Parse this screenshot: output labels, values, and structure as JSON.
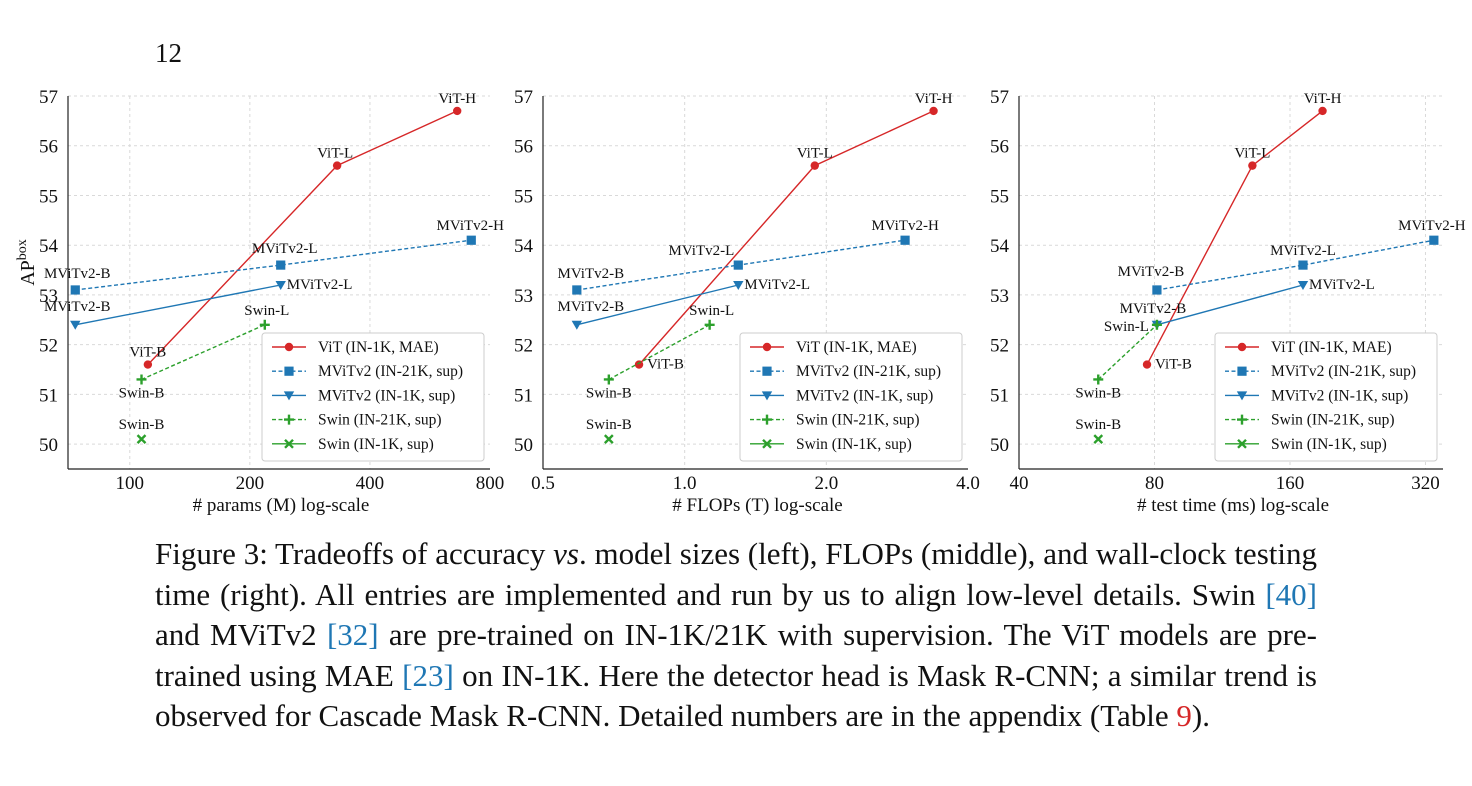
{
  "page": {
    "number": "12"
  },
  "figure": {
    "caption": {
      "label": "Figure 3:",
      "text_1": " Tradeoffs of accuracy ",
      "vs": "vs",
      "text_2": ". model sizes (left), FLOPs (middle), and wall-clock testing time (right). All entries are implemented and run by us to align low-level details. Swin ",
      "ref_swin": "[40]",
      "text_3": " and MViTv2 ",
      "ref_mvit": "[32]",
      "text_4": " are pre-trained on IN-1K/21K with supervision. The ViT models are pre-trained using MAE ",
      "ref_mae": "[23]",
      "text_5": " on IN-1K. Here the detector head is Mask R-CNN; a similar trend is observed for Cascade Mask R-CNN. Detailed numbers are in the appendix (Table ",
      "ref_table": "9",
      "text_6": ")."
    }
  },
  "chart_data": [
    {
      "type": "line",
      "xlabel": "# params (M) log-scale",
      "ylabel": "AP",
      "ylabel_sup": "box",
      "xscale": "log",
      "xlim": [
        70,
        800
      ],
      "xticks": [
        100,
        200,
        400,
        800
      ],
      "xtick_labels": [
        "100",
        "200",
        "400",
        "800"
      ],
      "ylim": [
        49.5,
        57
      ],
      "yticks": [
        50,
        51,
        52,
        53,
        54,
        55,
        56,
        57
      ],
      "grid": true,
      "legend_position": "lower-right",
      "series": [
        {
          "name": "ViT (IN-1K, MAE)",
          "color": "#d62728",
          "marker": "circle",
          "dash": "solid",
          "points": [
            {
              "x": 111,
              "y": 51.6,
              "label": "ViT-B"
            },
            {
              "x": 331,
              "y": 55.6,
              "label": "ViT-L"
            },
            {
              "x": 662,
              "y": 56.7,
              "label": "ViT-H"
            }
          ]
        },
        {
          "name": "MViTv2 (IN-21K, sup)",
          "color": "#1f77b4",
          "marker": "square",
          "dash": "dashed",
          "points": [
            {
              "x": 73,
              "y": 53.1,
              "label": "MViTv2-B"
            },
            {
              "x": 239,
              "y": 53.6,
              "label": "MViTv2-L"
            },
            {
              "x": 718,
              "y": 54.1,
              "label": "MViTv2-H"
            }
          ]
        },
        {
          "name": "MViTv2 (IN-1K, sup)",
          "color": "#1f77b4",
          "marker": "triangle-down",
          "dash": "solid",
          "points": [
            {
              "x": 73,
              "y": 52.4,
              "label": "MViTv2-B"
            },
            {
              "x": 239,
              "y": 53.2,
              "label": "MViTv2-L"
            }
          ]
        },
        {
          "name": "Swin (IN-21K, sup)",
          "color": "#2ca02c",
          "marker": "plus",
          "dash": "dashed",
          "points": [
            {
              "x": 107,
              "y": 51.3,
              "label": "Swin-B"
            },
            {
              "x": 218,
              "y": 52.4,
              "label": "Swin-L"
            }
          ]
        },
        {
          "name": "Swin (IN-1K, sup)",
          "color": "#2ca02c",
          "marker": "x",
          "dash": "solid",
          "points": [
            {
              "x": 107,
              "y": 50.1,
              "label": "Swin-B"
            }
          ]
        }
      ]
    },
    {
      "type": "line",
      "xlabel": "# FLOPs (T) log-scale",
      "ylabel": "",
      "xscale": "log",
      "xlim": [
        0.5,
        4.0
      ],
      "xticks": [
        0.5,
        1.0,
        2.0,
        4.0
      ],
      "xtick_labels": [
        "0.5",
        "1.0",
        "2.0",
        "4.0"
      ],
      "ylim": [
        49.5,
        57
      ],
      "yticks": [
        50,
        51,
        52,
        53,
        54,
        55,
        56,
        57
      ],
      "grid": true,
      "legend_position": "lower-right",
      "series": [
        {
          "name": "ViT (IN-1K, MAE)",
          "color": "#d62728",
          "marker": "circle",
          "dash": "solid",
          "points": [
            {
              "x": 0.8,
              "y": 51.6,
              "label": "ViT-B"
            },
            {
              "x": 1.89,
              "y": 55.6,
              "label": "ViT-L"
            },
            {
              "x": 3.38,
              "y": 56.7,
              "label": "ViT-H"
            }
          ]
        },
        {
          "name": "MViTv2 (IN-21K, sup)",
          "color": "#1f77b4",
          "marker": "square",
          "dash": "dashed",
          "points": [
            {
              "x": 0.59,
              "y": 53.1,
              "label": "MViTv2-B"
            },
            {
              "x": 1.3,
              "y": 53.6,
              "label": "MViTv2-L"
            },
            {
              "x": 2.94,
              "y": 54.1,
              "label": "MViTv2-H"
            }
          ]
        },
        {
          "name": "MViTv2 (IN-1K, sup)",
          "color": "#1f77b4",
          "marker": "triangle-down",
          "dash": "solid",
          "points": [
            {
              "x": 0.59,
              "y": 52.4,
              "label": "MViTv2-B"
            },
            {
              "x": 1.3,
              "y": 53.2,
              "label": "MViTv2-L"
            }
          ]
        },
        {
          "name": "Swin (IN-21K, sup)",
          "color": "#2ca02c",
          "marker": "plus",
          "dash": "dashed",
          "points": [
            {
              "x": 0.69,
              "y": 51.3,
              "label": "Swin-B"
            },
            {
              "x": 1.13,
              "y": 52.4,
              "label": "Swin-L"
            }
          ]
        },
        {
          "name": "Swin (IN-1K, sup)",
          "color": "#2ca02c",
          "marker": "x",
          "dash": "solid",
          "points": [
            {
              "x": 0.69,
              "y": 50.1,
              "label": "Swin-B"
            }
          ]
        }
      ]
    },
    {
      "type": "line",
      "xlabel": "# test time (ms) log-scale",
      "ylabel": "",
      "xscale": "log",
      "xlim": [
        40,
        350
      ],
      "xticks": [
        40,
        80,
        160,
        320
      ],
      "xtick_labels": [
        "40",
        "80",
        "160",
        "320"
      ],
      "ylim": [
        49.5,
        57
      ],
      "yticks": [
        50,
        51,
        52,
        53,
        54,
        55,
        56,
        57
      ],
      "grid": true,
      "legend_position": "lower-right",
      "series": [
        {
          "name": "ViT (IN-1K, MAE)",
          "color": "#d62728",
          "marker": "circle",
          "dash": "solid",
          "points": [
            {
              "x": 77,
              "y": 51.6,
              "label": "ViT-B"
            },
            {
              "x": 132,
              "y": 55.6,
              "label": "ViT-L"
            },
            {
              "x": 189,
              "y": 56.7,
              "label": "ViT-H"
            }
          ]
        },
        {
          "name": "MViTv2 (IN-21K, sup)",
          "color": "#1f77b4",
          "marker": "square",
          "dash": "dashed",
          "points": [
            {
              "x": 81,
              "y": 53.1,
              "label": "MViTv2-B"
            },
            {
              "x": 171,
              "y": 53.6,
              "label": "MViTv2-L"
            },
            {
              "x": 334,
              "y": 54.1,
              "label": "MViTv2-H"
            }
          ]
        },
        {
          "name": "MViTv2 (IN-1K, sup)",
          "color": "#1f77b4",
          "marker": "triangle-down",
          "dash": "solid",
          "points": [
            {
              "x": 81,
              "y": 52.4,
              "label": "MViTv2-B"
            },
            {
              "x": 171,
              "y": 53.2,
              "label": "MViTv2-L"
            }
          ]
        },
        {
          "name": "Swin (IN-21K, sup)",
          "color": "#2ca02c",
          "marker": "plus",
          "dash": "dashed",
          "points": [
            {
              "x": 60,
              "y": 51.3,
              "label": "Swin-B"
            },
            {
              "x": 81,
              "y": 52.4,
              "label": "Swin-L"
            }
          ]
        },
        {
          "name": "Swin (IN-1K, sup)",
          "color": "#2ca02c",
          "marker": "x",
          "dash": "solid",
          "points": [
            {
              "x": 60,
              "y": 50.1,
              "label": "Swin-B"
            }
          ]
        }
      ]
    }
  ]
}
